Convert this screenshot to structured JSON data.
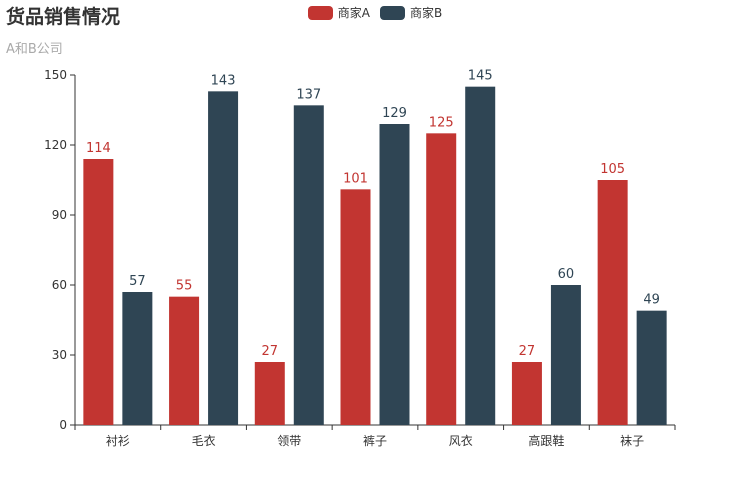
{
  "title": "货品销售情况",
  "subtitle": "A和B公司",
  "legend": [
    {
      "name": "商家A",
      "color": "#c23531"
    },
    {
      "name": "商家B",
      "color": "#2f4554"
    }
  ],
  "chart_data": {
    "type": "bar",
    "title": "货品销售情况",
    "subtitle": "A和B公司",
    "categories": [
      "衬衫",
      "毛衣",
      "领带",
      "裤子",
      "风衣",
      "高跟鞋",
      "袜子"
    ],
    "series": [
      {
        "name": "商家A",
        "color": "#c23531",
        "values": [
          114,
          55,
          27,
          101,
          125,
          27,
          105
        ]
      },
      {
        "name": "商家B",
        "color": "#2f4554",
        "values": [
          57,
          143,
          137,
          129,
          145,
          60,
          49
        ]
      }
    ],
    "ylim": [
      0,
      150
    ],
    "yticks": [
      0,
      30,
      60,
      90,
      120,
      150
    ],
    "xlabel": "",
    "ylabel": "",
    "grid": false,
    "legend_position": "top-center",
    "data_labels": true
  }
}
